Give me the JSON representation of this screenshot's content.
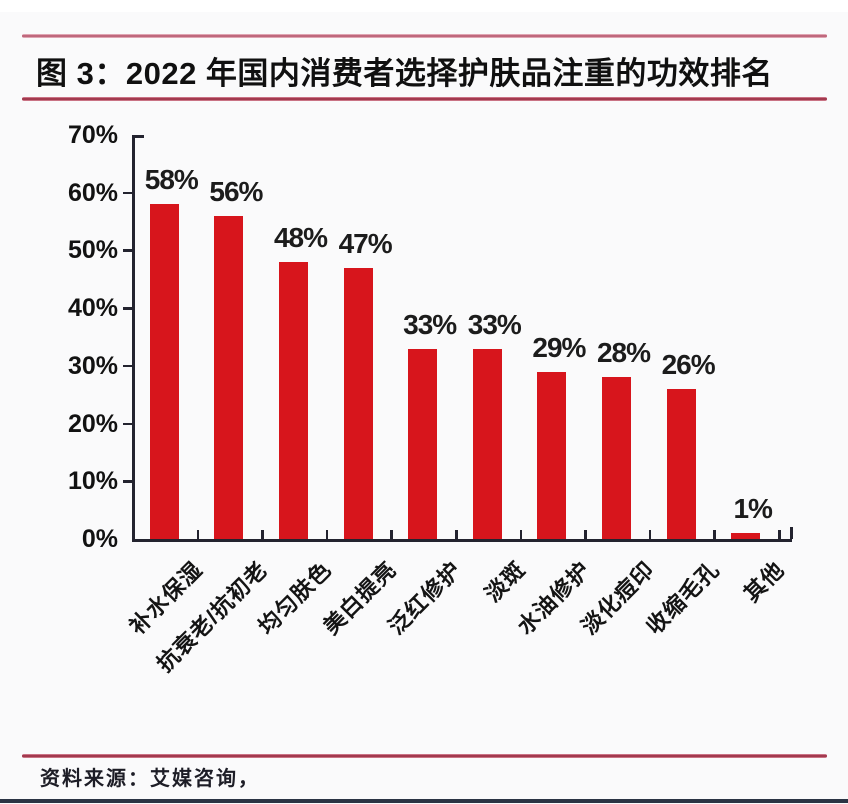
{
  "header": {
    "title": "图 3：2022 年国内消费者选择护肤品注重的功效排名"
  },
  "footer": {
    "source_label": "资料来源：艾媒咨询，"
  },
  "chart_data": {
    "type": "bar",
    "title": "2022 年国内消费者选择护肤品注重的功效排名",
    "categories": [
      "补水保湿",
      "抗衰老/抗初老",
      "均匀肤色",
      "美白提亮",
      "泛红修护",
      "淡斑",
      "水油修护",
      "淡化痘印",
      "收缩毛孔",
      "其他"
    ],
    "values": [
      58,
      56,
      48,
      47,
      33,
      33,
      29,
      28,
      26,
      1
    ],
    "value_labels": [
      "58%",
      "56%",
      "48%",
      "47%",
      "33%",
      "33%",
      "29%",
      "28%",
      "26%",
      "1%"
    ],
    "xlabel": "",
    "ylabel": "",
    "ylim": [
      0,
      70
    ],
    "ytick_step": 10,
    "ytick_labels": [
      "0%",
      "10%",
      "20%",
      "30%",
      "40%",
      "50%",
      "60%",
      "70%"
    ],
    "grid": false,
    "legend": "none",
    "bar_color": "#d7151c",
    "axis_color": "#23232f",
    "rule_color_dark": "#8f1d33",
    "rule_color_light": "#b04a62",
    "bottom_border_color": "#2b3444"
  }
}
